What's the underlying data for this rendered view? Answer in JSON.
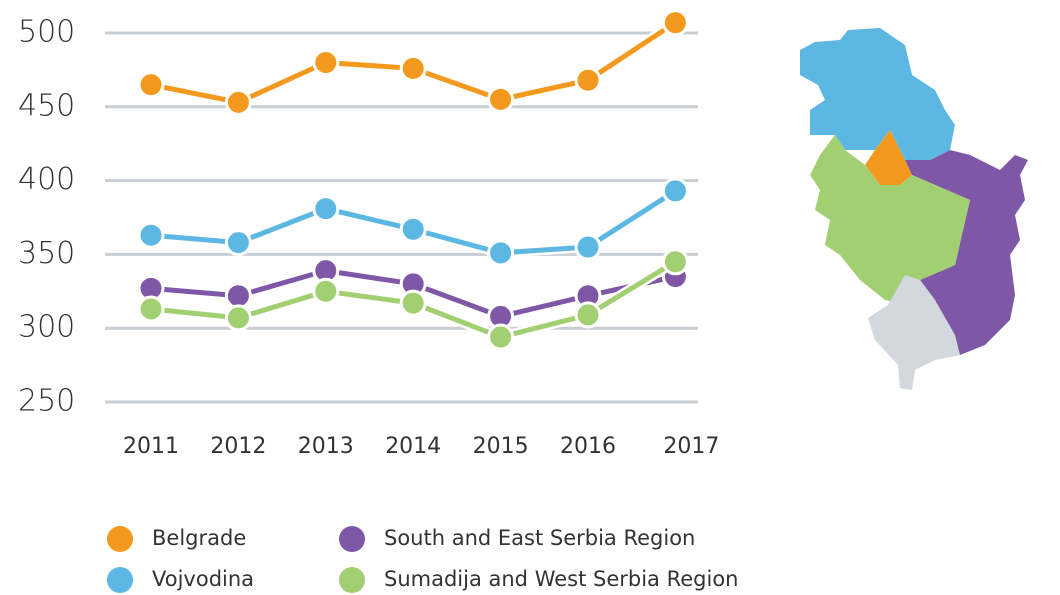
{
  "chart_data": {
    "type": "line",
    "x": [
      2011,
      2012,
      2013,
      2014,
      2015,
      2016,
      2017
    ],
    "series": [
      {
        "name": "Belgrade",
        "color": "#f39a1e",
        "values": [
          465,
          453,
          480,
          476,
          455,
          468,
          507
        ]
      },
      {
        "name": "Vojvodina",
        "color": "#5cb8e2",
        "values": [
          363,
          358,
          381,
          367,
          351,
          355,
          393
        ]
      },
      {
        "name": "South and East Serbia Region",
        "color": "#7e57a6",
        "values": [
          327,
          322,
          339,
          330,
          308,
          322,
          335
        ]
      },
      {
        "name": "Sumadija and West Serbia Region",
        "color": "#a2cf72",
        "values": [
          313,
          307,
          325,
          317,
          294,
          309,
          345
        ]
      }
    ],
    "ylim": [
      250,
      500
    ],
    "yticks": [
      250,
      300,
      350,
      400,
      450,
      500
    ],
    "grid": true
  }
}
